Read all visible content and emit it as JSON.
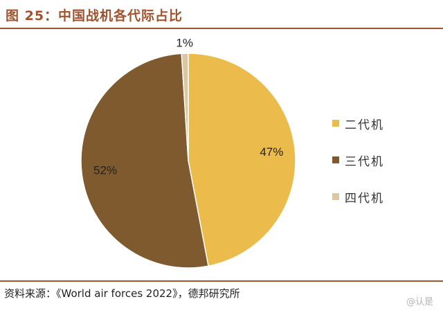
{
  "figure": {
    "title": "图 25：中国战机各代际占比",
    "source": "资料来源：《World air forces 2022》，德邦研究所",
    "watermark": "@认是"
  },
  "colors": {
    "title": "#A0522D",
    "rule": "#A0522D"
  },
  "chart_data": {
    "type": "pie",
    "slices": [
      {
        "label": "二代机",
        "value": 47,
        "display": "47%",
        "color": "#EBBB4B"
      },
      {
        "label": "三代机",
        "value": 52,
        "display": "52%",
        "color": "#7F5A2F"
      },
      {
        "label": "四代机",
        "value": 1,
        "display": "1%",
        "color": "#DCC7A5"
      }
    ],
    "start_angle_deg": 0,
    "direction": "clockwise",
    "legend_position": "right",
    "grid": false
  }
}
